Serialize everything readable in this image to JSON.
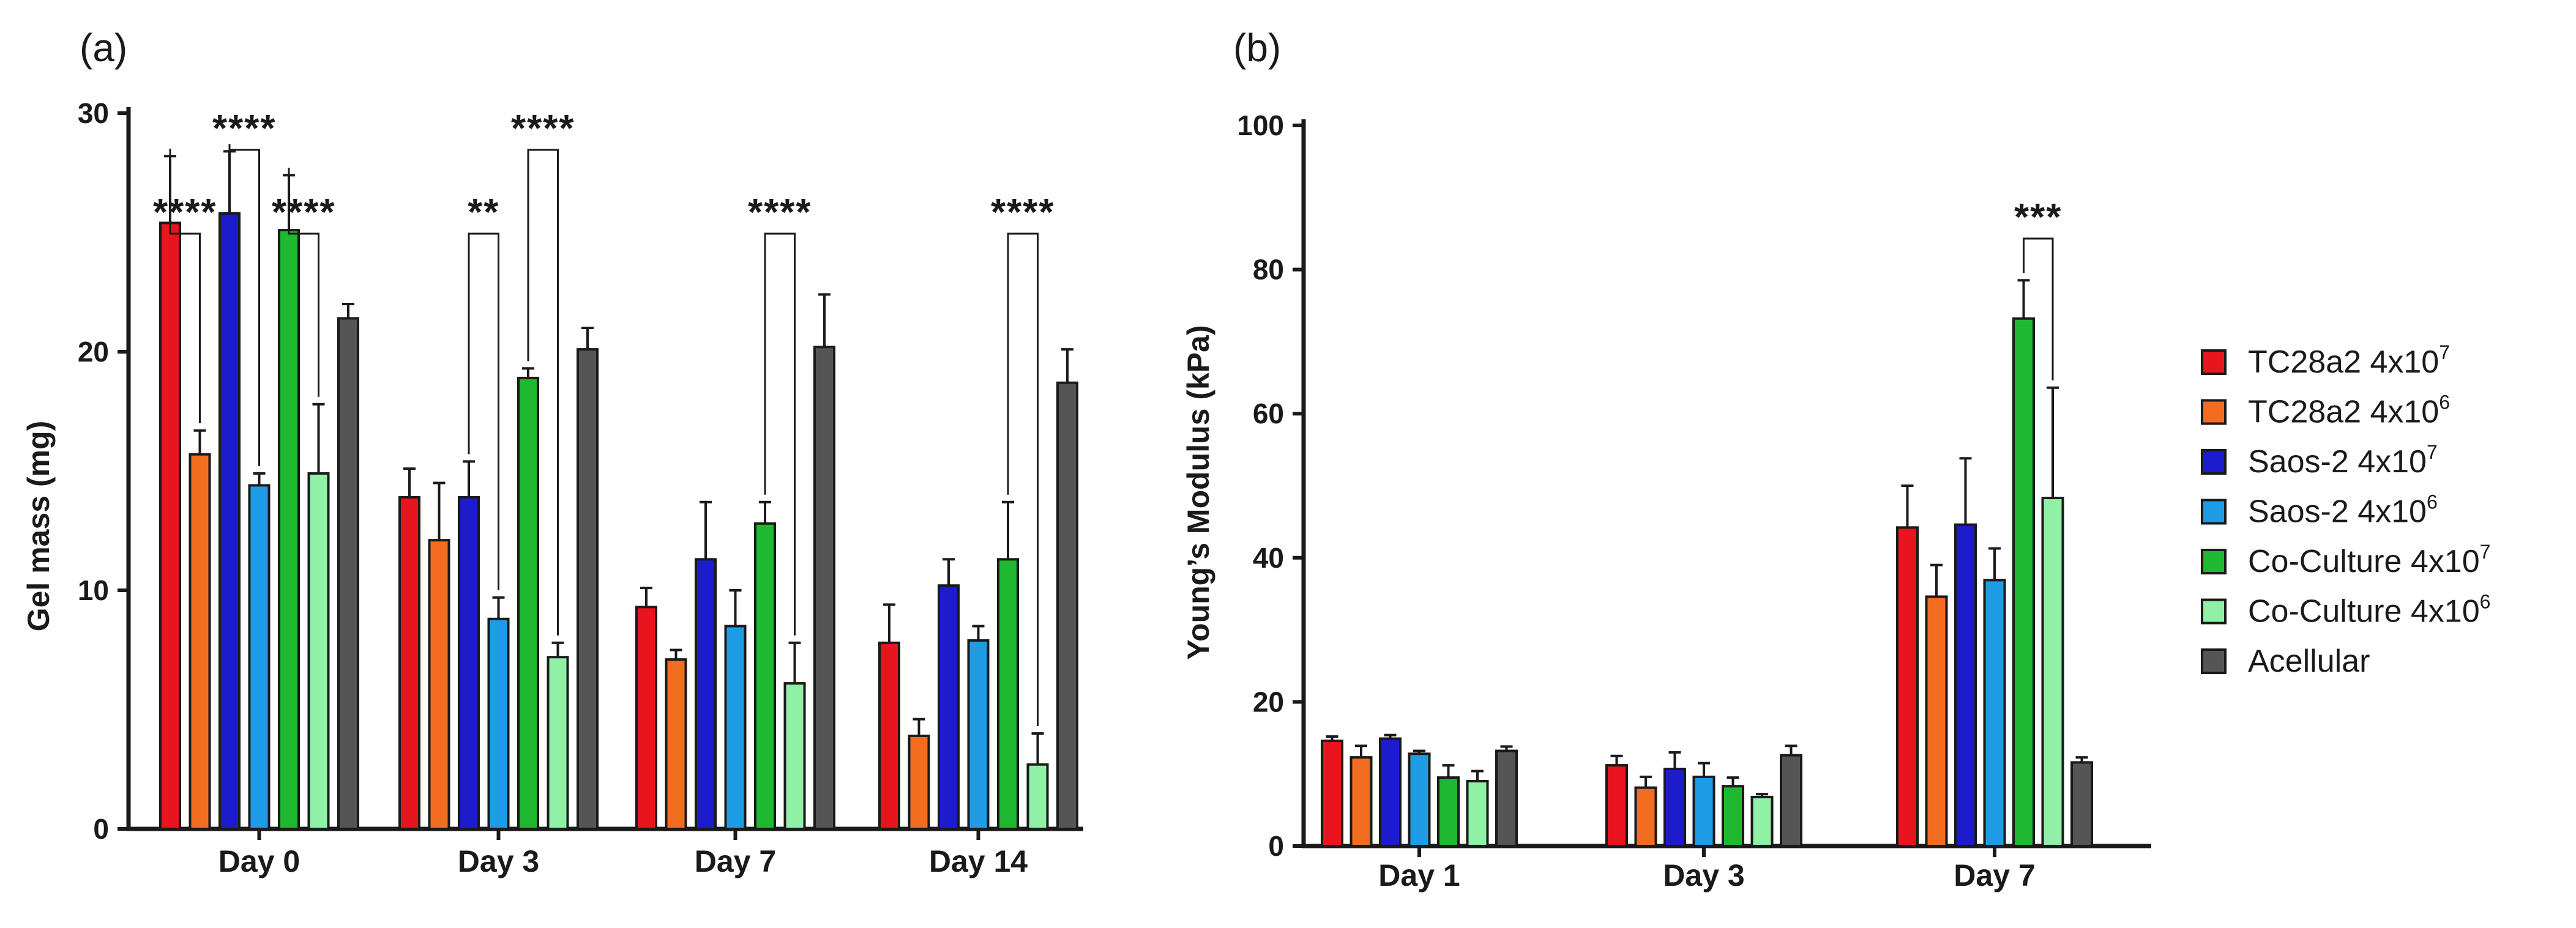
{
  "colors": {
    "TC28a2 4x10^7": "#e8141e",
    "TC28a2 4x10^6": "#f26d1f",
    "Saos-2 4x10^7": "#1c1ccc",
    "Saos-2 4x10^6": "#1e9de6",
    "Co-Culture 4x10^7": "#1fb831",
    "Co-Culture 4x10^6": "#8ff0a6",
    "Acellular": "#555555"
  },
  "legend": [
    {
      "base": "TC28a2 4x10",
      "sup": "7",
      "series": "TC28a2 4x10^7"
    },
    {
      "base": "TC28a2 4x10",
      "sup": "6",
      "series": "TC28a2 4x10^6"
    },
    {
      "base": "Saos-2 4x10",
      "sup": "7",
      "series": "Saos-2 4x10^7"
    },
    {
      "base": "Saos-2 4x10",
      "sup": "6",
      "series": "Saos-2 4x10^6"
    },
    {
      "base": "Co-Culture 4x10",
      "sup": "7",
      "series": "Co-Culture 4x10^7"
    },
    {
      "base": "Co-Culture 4x10",
      "sup": "6",
      "series": "Co-Culture 4x10^6"
    },
    {
      "base": "Acellular",
      "sup": "",
      "series": "Acellular"
    }
  ],
  "chart_data": [
    {
      "panel": "(a)",
      "type": "bar",
      "ylabel": "Gel mass (mg)",
      "xlabel": "",
      "ylim": [
        0,
        30
      ],
      "yticks": [
        0,
        10,
        20,
        30
      ],
      "categories": [
        "Day 0",
        "Day 3",
        "Day 7",
        "Day 14"
      ],
      "series": [
        {
          "name": "TC28a2 4x10^7",
          "values": [
            25.4,
            13.9,
            9.3,
            7.8
          ],
          "errors": [
            2.8,
            1.2,
            0.8,
            1.6
          ]
        },
        {
          "name": "TC28a2 4x10^6",
          "values": [
            15.7,
            12.1,
            7.1,
            3.9
          ],
          "errors": [
            1.0,
            2.4,
            0.4,
            0.7
          ]
        },
        {
          "name": "Saos-2 4x10^7",
          "values": [
            25.8,
            13.9,
            11.3,
            10.2
          ],
          "errors": [
            2.6,
            1.5,
            2.4,
            1.1
          ]
        },
        {
          "name": "Saos-2 4x10^6",
          "values": [
            14.4,
            8.8,
            8.5,
            7.9
          ],
          "errors": [
            0.5,
            0.9,
            1.5,
            0.6
          ]
        },
        {
          "name": "Co-Culture 4x10^7",
          "values": [
            25.1,
            18.9,
            12.8,
            11.3
          ],
          "errors": [
            2.3,
            0.4,
            0.9,
            2.4
          ]
        },
        {
          "name": "Co-Culture 4x10^6",
          "values": [
            14.9,
            7.2,
            6.1,
            2.7
          ],
          "errors": [
            2.9,
            0.6,
            1.7,
            1.3
          ]
        },
        {
          "name": "Acellular",
          "values": [
            21.4,
            20.1,
            20.2,
            18.7
          ],
          "errors": [
            0.6,
            0.9,
            2.2,
            1.4
          ]
        }
      ],
      "significance": [
        {
          "category": 0,
          "from": 0,
          "to": 1,
          "label": "****",
          "level": 0
        },
        {
          "category": 0,
          "from": 2,
          "to": 3,
          "label": "****",
          "level": 1
        },
        {
          "category": 0,
          "from": 4,
          "to": 5,
          "label": "****",
          "level": 0
        },
        {
          "category": 1,
          "from": 2,
          "to": 3,
          "label": "**",
          "level": 0
        },
        {
          "category": 1,
          "from": 4,
          "to": 5,
          "label": "****",
          "level": 1
        },
        {
          "category": 2,
          "from": 4,
          "to": 5,
          "label": "****",
          "level": 0
        },
        {
          "category": 3,
          "from": 4,
          "to": 5,
          "label": "****",
          "level": 0
        }
      ]
    },
    {
      "panel": "(b)",
      "type": "bar",
      "ylabel": "Young’s Modulus (kPa)",
      "xlabel": "",
      "ylim": [
        0,
        100
      ],
      "yticks": [
        0,
        20,
        40,
        60,
        80,
        100
      ],
      "categories": [
        "Day 1",
        "Day 3",
        "Day 7"
      ],
      "series": [
        {
          "name": "TC28a2 4x10^7",
          "values": [
            14.6,
            11.2,
            44.2
          ],
          "errors": [
            0.6,
            1.3,
            5.8
          ]
        },
        {
          "name": "TC28a2 4x10^6",
          "values": [
            12.3,
            8.1,
            34.6
          ],
          "errors": [
            1.6,
            1.5,
            4.4
          ]
        },
        {
          "name": "Saos-2 4x10^7",
          "values": [
            14.9,
            10.7,
            44.6
          ],
          "errors": [
            0.5,
            2.3,
            9.2
          ]
        },
        {
          "name": "Saos-2 4x10^6",
          "values": [
            12.8,
            9.6,
            36.9
          ],
          "errors": [
            0.4,
            1.9,
            4.4
          ]
        },
        {
          "name": "Co-Culture 4x10^7",
          "values": [
            9.5,
            8.3,
            73.2
          ],
          "errors": [
            1.7,
            1.2,
            5.3
          ]
        },
        {
          "name": "Co-Culture 4x10^6",
          "values": [
            9.0,
            6.8,
            48.3
          ],
          "errors": [
            1.4,
            0.4,
            15.3
          ]
        },
        {
          "name": "Acellular",
          "values": [
            13.2,
            12.6,
            11.6
          ],
          "errors": [
            0.6,
            1.3,
            0.7
          ]
        }
      ],
      "significance": [
        {
          "category": 2,
          "from": 4,
          "to": 5,
          "label": "***",
          "level": 0
        }
      ]
    }
  ]
}
